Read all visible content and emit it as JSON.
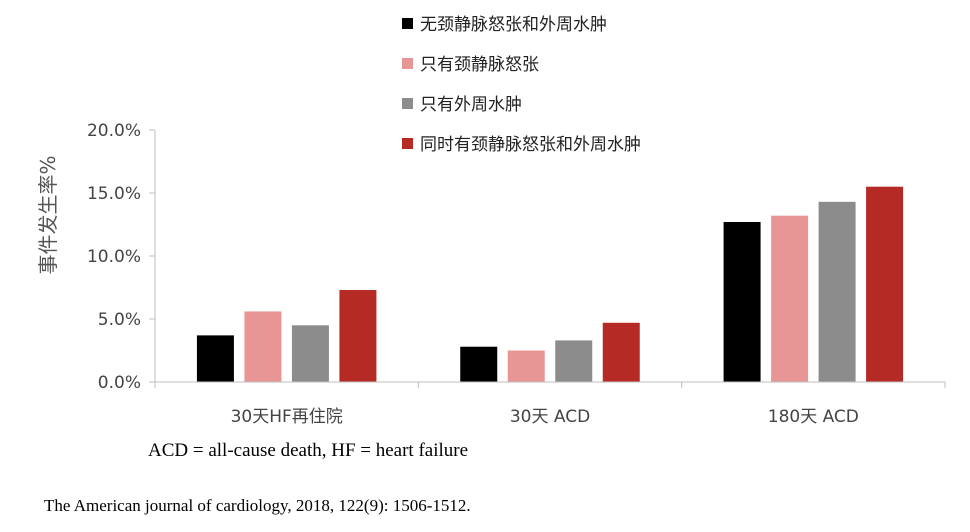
{
  "chart_data": {
    "type": "bar",
    "categories": [
      "30天HF再住院",
      "30天 ACD",
      "180天 ACD"
    ],
    "series": [
      {
        "name": "无颈静脉怒张和外周水肿",
        "color": "#000000",
        "values": [
          3.7,
          2.8,
          12.7
        ]
      },
      {
        "name": "只有颈静脉怒张",
        "color": "#e89595",
        "values": [
          5.6,
          2.5,
          13.2
        ]
      },
      {
        "name": "只有外周水肿",
        "color": "#8c8c8c",
        "values": [
          4.5,
          3.3,
          14.3
        ]
      },
      {
        "name": "同时有颈静脉怒张和外周水肿",
        "color": "#b52a25",
        "values": [
          7.3,
          4.7,
          15.5
        ]
      }
    ],
    "ylabel": "事件发生率%",
    "ylim": [
      0,
      20
    ],
    "yticks": [
      "0.0%",
      "5.0%",
      "10.0%",
      "15.0%",
      "20.0%"
    ],
    "grid": false,
    "legend_position": "top-right"
  },
  "note": "ACD = all-cause death, HF = heart failure",
  "source": "The American journal of cardiology, 2018, 122(9): 1506-1512."
}
